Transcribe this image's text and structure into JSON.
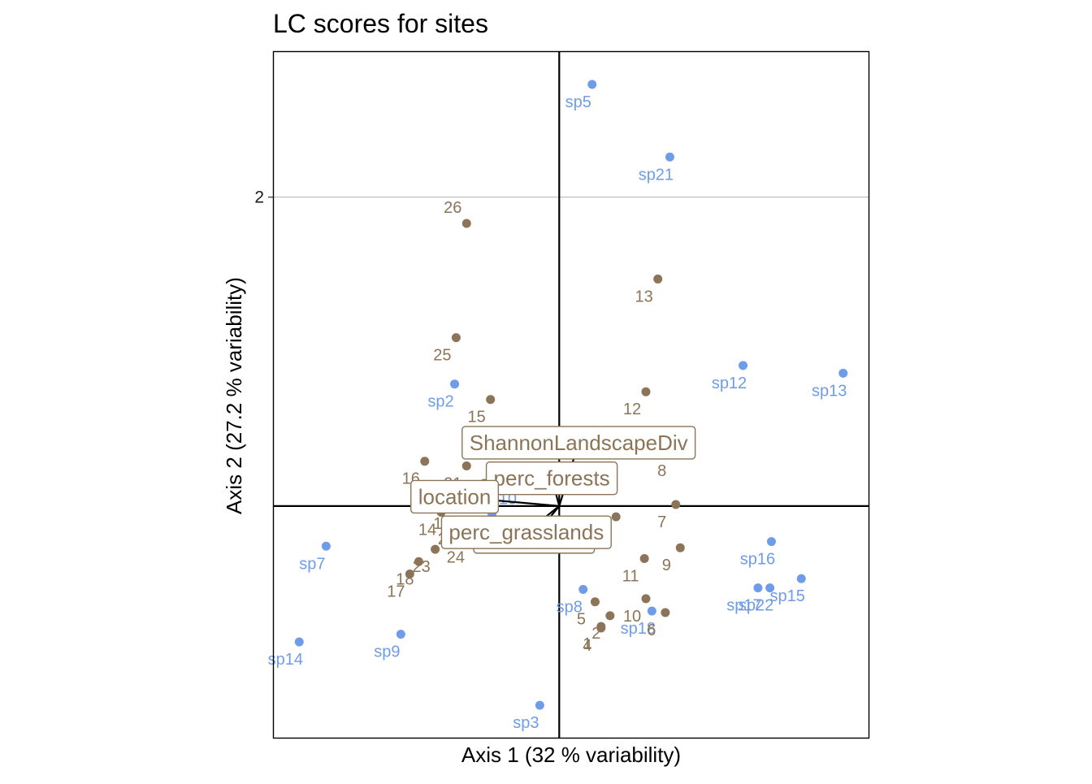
{
  "chart_data": {
    "type": "scatter",
    "title": "LC scores for sites",
    "xlabel": "Axis 1 (32 % variability)",
    "ylabel": "Axis 2 (27.2 % variability)",
    "xlim": [
      -1.91,
      2.07
    ],
    "ylim": [
      -1.5,
      2.94
    ],
    "x_ticks": [],
    "y_ticks": [
      2
    ],
    "grid": true,
    "colors": {
      "species": "#6f9ce9",
      "sites": "#8b7457",
      "vectors": "#000000",
      "box_border": "#8b7457"
    },
    "species": [
      {
        "label": "sp5",
        "x": 0.22,
        "y": 2.73
      },
      {
        "label": "sp21",
        "x": 0.74,
        "y": 2.26
      },
      {
        "label": "sp12",
        "x": 1.23,
        "y": 0.91
      },
      {
        "label": "sp13",
        "x": 1.9,
        "y": 0.86
      },
      {
        "label": "sp2",
        "x": -0.7,
        "y": 0.79
      },
      {
        "label": "sp16",
        "x": 1.42,
        "y": -0.23
      },
      {
        "label": "sp15",
        "x": 1.62,
        "y": -0.47
      },
      {
        "label": "sp17",
        "x": 1.33,
        "y": -0.53
      },
      {
        "label": "sp22",
        "x": 1.41,
        "y": -0.53
      },
      {
        "label": "sp18",
        "x": 0.62,
        "y": -0.68
      },
      {
        "label": "sp8",
        "x": 0.16,
        "y": -0.54
      },
      {
        "label": "sp10",
        "x": -0.31,
        "y": 0.16
      },
      {
        "label": "sp11",
        "x": -0.45,
        "y": -0.05
      },
      {
        "label": "sp7",
        "x": -1.56,
        "y": -0.26
      },
      {
        "label": "sp9",
        "x": -1.06,
        "y": -0.83
      },
      {
        "label": "sp14",
        "x": -1.74,
        "y": -0.88
      },
      {
        "label": "sp3",
        "x": -0.13,
        "y": -1.29
      }
    ],
    "sites": [
      {
        "label": "26",
        "x": -0.62,
        "y": 1.83
      },
      {
        "label": "13",
        "x": 0.66,
        "y": 1.47
      },
      {
        "label": "25",
        "x": -0.69,
        "y": 1.09
      },
      {
        "label": "12",
        "x": 0.58,
        "y": 0.74
      },
      {
        "label": "15",
        "x": -0.46,
        "y": 0.69
      },
      {
        "label": "8",
        "x": 0.78,
        "y": 0.34
      },
      {
        "label": "16",
        "x": -0.9,
        "y": 0.29
      },
      {
        "label": "21",
        "x": -0.62,
        "y": 0.26
      },
      {
        "label": "22",
        "x": -0.38,
        "y": 0.25
      },
      {
        "label": "7",
        "x": 0.78,
        "y": 0.01
      },
      {
        "label": "14",
        "x": -0.79,
        "y": -0.04
      },
      {
        "label": "19",
        "x": -0.69,
        "y": 0.0
      },
      {
        "label": "20",
        "x": -0.66,
        "y": -0.1
      },
      {
        "label": "9",
        "x": 0.81,
        "y": -0.27
      },
      {
        "label": "3",
        "x": 0.38,
        "y": -0.07
      },
      {
        "label": "18",
        "x": -0.94,
        "y": -0.36
      },
      {
        "label": "23",
        "x": -0.83,
        "y": -0.28
      },
      {
        "label": "24",
        "x": -0.6,
        "y": -0.22
      },
      {
        "label": "17",
        "x": -1.0,
        "y": -0.44
      },
      {
        "label": "5",
        "x": 0.24,
        "y": -0.62
      },
      {
        "label": "10",
        "x": 0.58,
        "y": -0.6
      },
      {
        "label": "11",
        "x": 0.57,
        "y": -0.34
      },
      {
        "label": "6",
        "x": 0.71,
        "y": -0.69
      },
      {
        "label": "4",
        "x": 0.28,
        "y": -0.79
      },
      {
        "label": "1",
        "x": 0.28,
        "y": -0.78
      },
      {
        "label": "2",
        "x": 0.34,
        "y": -0.71
      }
    ],
    "vectors": [
      {
        "label": "ShannonLandscapeDiv",
        "x": 0.13,
        "y": 0.41
      },
      {
        "label": "perc_forests",
        "x": -0.05,
        "y": 0.18
      },
      {
        "label": "location",
        "x": -0.7,
        "y": 0.06
      },
      {
        "label": "patch_area",
        "x": -0.17,
        "y": -0.2
      },
      {
        "label": "perc_grasslands",
        "x": -0.22,
        "y": -0.17
      }
    ]
  }
}
